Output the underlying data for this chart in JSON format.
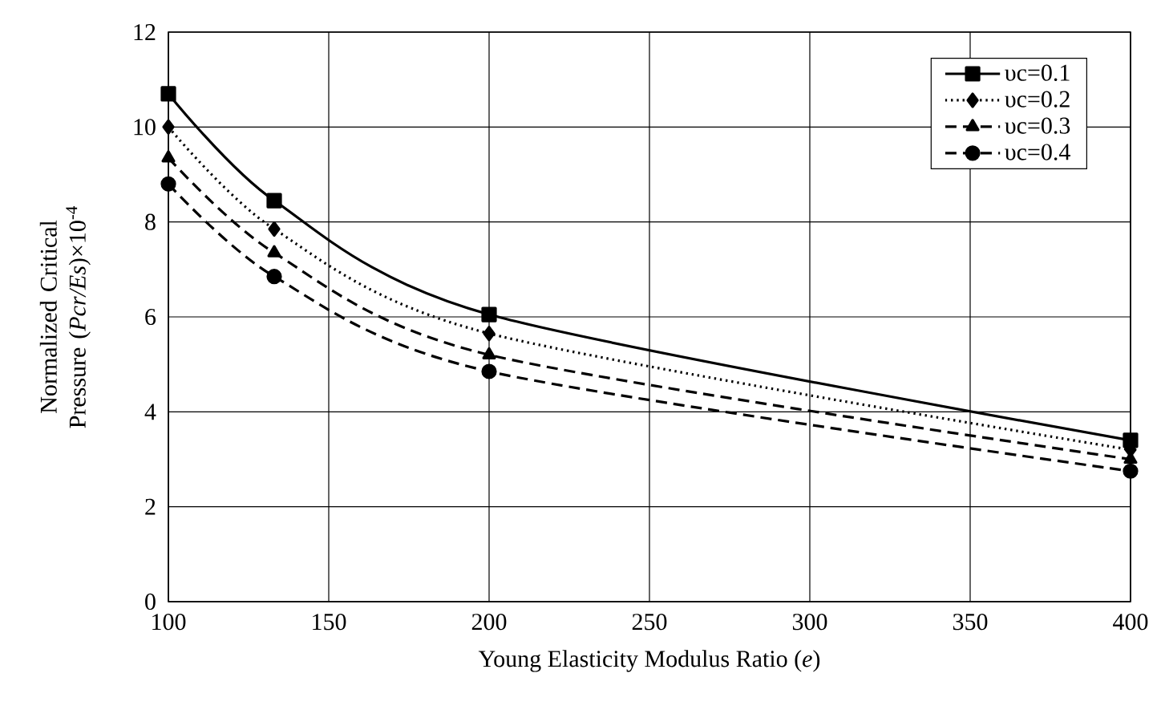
{
  "chart_data": {
    "type": "line",
    "xlabel": "Young Elasticity Modulus Ratio (*e*)",
    "ylabel": "Normalized Critical Pressure (*Pcr/Es*)×10$^{-4}$",
    "x": [
      100,
      133,
      200,
      400
    ],
    "series": [
      {
        "name": "υc=0.1",
        "color": "#000000",
        "marker": "square",
        "line_style": "solid",
        "values": [
          10.7,
          8.45,
          6.05,
          3.4
        ]
      },
      {
        "name": "υc=0.2",
        "color": "#000000",
        "marker": "diamond",
        "line_style": "dotted",
        "values": [
          10.0,
          7.85,
          5.65,
          3.2
        ]
      },
      {
        "name": "υc=0.3",
        "color": "#000000",
        "marker": "triangle",
        "line_style": "dashed",
        "values": [
          9.35,
          7.35,
          5.2,
          3.0
        ]
      },
      {
        "name": "υc=0.4",
        "color": "#000000",
        "marker": "circle",
        "line_style": "dashed",
        "values": [
          8.8,
          6.85,
          4.85,
          2.75
        ]
      }
    ],
    "xlim": [
      100,
      400
    ],
    "xticks": [
      100,
      150,
      200,
      250,
      300,
      350,
      400
    ],
    "ylim": [
      0,
      12
    ],
    "yticks": [
      0,
      2,
      4,
      6,
      8,
      10,
      12
    ],
    "grid": true,
    "legend": "top right"
  }
}
